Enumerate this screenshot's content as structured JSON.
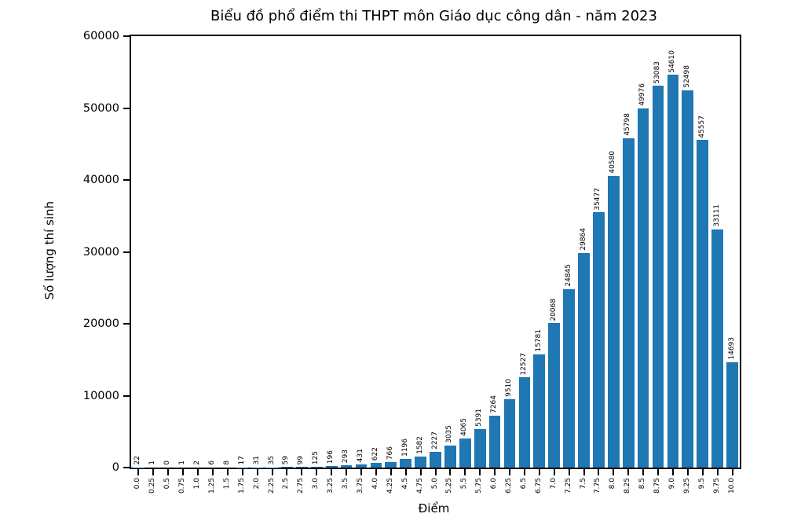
{
  "chart_data": {
    "type": "bar",
    "title": "Biểu đồ phổ điểm thi THPT môn Giáo dục công dân - năm 2023",
    "xlabel": "Điểm",
    "ylabel": "Số lượng thí sinh",
    "categories": [
      "0.0",
      "0.25",
      "0.5",
      "0.75",
      "1.0",
      "1.25",
      "1.5",
      "1.75",
      "2.0",
      "2.25",
      "2.5",
      "2.75",
      "3.0",
      "3.25",
      "3.5",
      "3.75",
      "4.0",
      "4.25",
      "4.5",
      "4.75",
      "5.0",
      "5.25",
      "5.5",
      "5.75",
      "6.0",
      "6.25",
      "6.5",
      "6.75",
      "7.0",
      "7.25",
      "7.5",
      "7.75",
      "8.0",
      "8.25",
      "8.5",
      "8.75",
      "9.0",
      "9.25",
      "9.5",
      "9.75",
      "10.0"
    ],
    "values": [
      22,
      1,
      0,
      1,
      2,
      6,
      8,
      17,
      31,
      35,
      59,
      99,
      125,
      196,
      293,
      431,
      622,
      766,
      1196,
      1582,
      2227,
      3035,
      4065,
      5391,
      7264,
      9510,
      12527,
      15781,
      20068,
      24845,
      29864,
      35477,
      40580,
      45798,
      49976,
      53083,
      54610,
      52498,
      45557,
      33111,
      14693
    ],
    "ylim": [
      0,
      60000
    ],
    "yticks": [
      0,
      10000,
      20000,
      30000,
      40000,
      50000,
      60000
    ],
    "bar_color": "#1f77b4",
    "text_color": "#000000",
    "grid": false,
    "legend": "none",
    "bar_labels": true,
    "bar_label_rotation": 90,
    "x_tick_rotation": 90
  }
}
